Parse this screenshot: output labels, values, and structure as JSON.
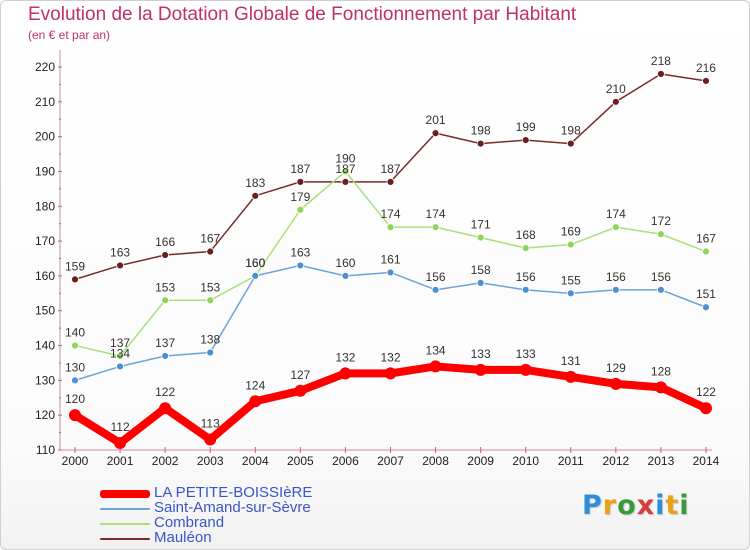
{
  "chart_data": {
    "type": "line",
    "title": "Evolution de la Dotation Globale de Fonctionnement par Habitant",
    "subtitle": "(en € et par an)",
    "xlabel": "",
    "ylabel": "",
    "x": [
      "2000",
      "2001",
      "2002",
      "2003",
      "2004",
      "2005",
      "2006",
      "2007",
      "2008",
      "2009",
      "2010",
      "2011",
      "2012",
      "2013",
      "2014"
    ],
    "ylim": [
      110,
      220
    ],
    "yticks": [
      110,
      120,
      130,
      140,
      150,
      160,
      170,
      180,
      190,
      200,
      210,
      220
    ],
    "grid": false,
    "legend_position": "bottom-left",
    "series": [
      {
        "name": "LA PETITE-BOISSIèRE",
        "color": "#ff0000",
        "marker_color": "#ff0000",
        "width": "thick",
        "values": [
          120,
          112,
          122,
          113,
          124,
          127,
          132,
          132,
          134,
          133,
          133,
          131,
          129,
          128,
          122
        ]
      },
      {
        "name": "Saint-Amand-sur-Sèvre",
        "color": "#6fa3d6",
        "marker_color": "#4d8fd0",
        "width": "thin",
        "values": [
          130,
          134,
          137,
          138,
          160,
          163,
          160,
          161,
          156,
          158,
          156,
          155,
          156,
          156,
          151
        ]
      },
      {
        "name": "Combrand",
        "color": "#a8e07a",
        "marker_color": "#8ed65a",
        "width": "thin",
        "values": [
          140,
          137,
          153,
          153,
          160,
          179,
          190,
          174,
          174,
          171,
          168,
          169,
          174,
          172,
          167
        ]
      },
      {
        "name": "Mauléon",
        "color": "#7a2a2a",
        "marker_color": "#6b1e1e",
        "width": "thin",
        "values": [
          159,
          163,
          166,
          167,
          183,
          187,
          187,
          187,
          201,
          198,
          199,
          198,
          210,
          218,
          216
        ]
      }
    ]
  },
  "logo": {
    "letters": [
      "P",
      "r",
      "o",
      "x",
      "i",
      "t",
      "i"
    ]
  }
}
